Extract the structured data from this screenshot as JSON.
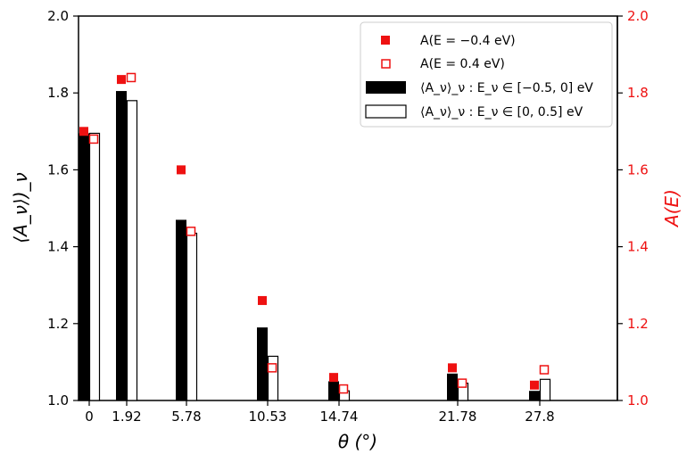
{
  "chart_data": {
    "type": "bar",
    "x_tick_labels": [
      "0",
      "1.92",
      "5.78",
      "10.53",
      "14.74",
      "21.78",
      "27.8"
    ],
    "x": [
      0,
      1.92,
      5.78,
      10.53,
      14.74,
      21.78,
      27.8
    ],
    "xlabel": "θ (°)",
    "ylabel_left": "⟨A_ν⟩)_ν",
    "ylabel_right": "A(E)",
    "ylim": [
      1.0,
      2.0
    ],
    "yticks": [
      1.0,
      1.2,
      1.4,
      1.6,
      1.8,
      2.0
    ],
    "ytick_labels": [
      "1.0",
      "1.2",
      "1.4",
      "1.6",
      "1.8",
      "2.0"
    ],
    "grid": false,
    "legend_position": "top-right",
    "colors": {
      "filled_bar": "#000000",
      "hollow_bar": "#ffffff",
      "right_axis": "#ee1111",
      "marker": "#ee1111"
    },
    "series": [
      {
        "name": "⟨A_ν⟩_ν : E_ν ∈ [−0.5, 0] eV",
        "kind": "bar-filled",
        "values": [
          1.695,
          1.805,
          1.47,
          1.19,
          1.05,
          1.07,
          1.025
        ]
      },
      {
        "name": "⟨A_ν⟩_ν : E_ν ∈ [0, 0.5] eV",
        "kind": "bar-hollow",
        "values": [
          1.695,
          1.78,
          1.435,
          1.115,
          1.025,
          1.045,
          1.055
        ]
      },
      {
        "name": "A(E = −0.4 eV)",
        "kind": "marker-filled",
        "values": [
          1.7,
          1.835,
          1.6,
          1.26,
          1.06,
          1.085,
          1.04
        ]
      },
      {
        "name": "A(E = 0.4 eV)",
        "kind": "marker-hollow",
        "values": [
          1.68,
          1.84,
          1.44,
          1.085,
          1.03,
          1.045,
          1.08
        ]
      }
    ]
  }
}
